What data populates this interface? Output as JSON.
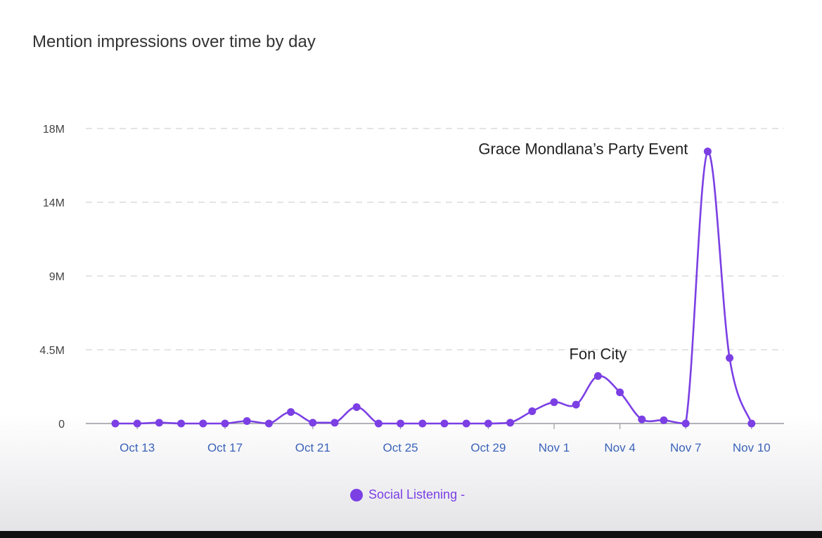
{
  "chart_data": {
    "type": "line",
    "title": "Mention impressions over time by day",
    "xlabel": "",
    "ylabel": "",
    "ytick_labels": [
      "0",
      "4.5M",
      "9M",
      "14M",
      "18M"
    ],
    "ytick_values": [
      0,
      4500000,
      9000000,
      13500000,
      18000000
    ],
    "ylim": [
      0,
      18000000
    ],
    "grid": true,
    "legend_position": "bottom",
    "x": [
      "Oct 12",
      "Oct 13",
      "Oct 14",
      "Oct 15",
      "Oct 16",
      "Oct 17",
      "Oct 18",
      "Oct 19",
      "Oct 20",
      "Oct 21",
      "Oct 22",
      "Oct 23",
      "Oct 24",
      "Oct 25",
      "Oct 26",
      "Oct 27",
      "Oct 28",
      "Oct 29",
      "Oct 30",
      "Oct 31",
      "Nov 1",
      "Nov 2",
      "Nov 3",
      "Nov 4",
      "Nov 5",
      "Nov 6",
      "Nov 7",
      "Nov 8",
      "Nov 9",
      "Nov 10"
    ],
    "xtick_labels": [
      "Oct 13",
      "Oct 17",
      "Oct 21",
      "Oct 25",
      "Oct 29",
      "Nov 1",
      "Nov 4",
      "Nov 7",
      "Nov 10"
    ],
    "series": [
      {
        "name": "Social Listening -",
        "color": "#7b3fe4",
        "values": [
          0,
          0,
          50000,
          0,
          0,
          0,
          150000,
          0,
          700000,
          50000,
          50000,
          1000000,
          0,
          0,
          0,
          0,
          0,
          0,
          50000,
          750000,
          1300000,
          1150000,
          2900000,
          1900000,
          250000,
          200000,
          0,
          16600000,
          4000000,
          0
        ]
      }
    ],
    "annotations": [
      {
        "text": "Grace Mondlana’s Party Event",
        "x": "Nov 8",
        "y": 16600000
      },
      {
        "text": "Fon City",
        "x": "Nov 3",
        "y": 2900000
      }
    ]
  }
}
